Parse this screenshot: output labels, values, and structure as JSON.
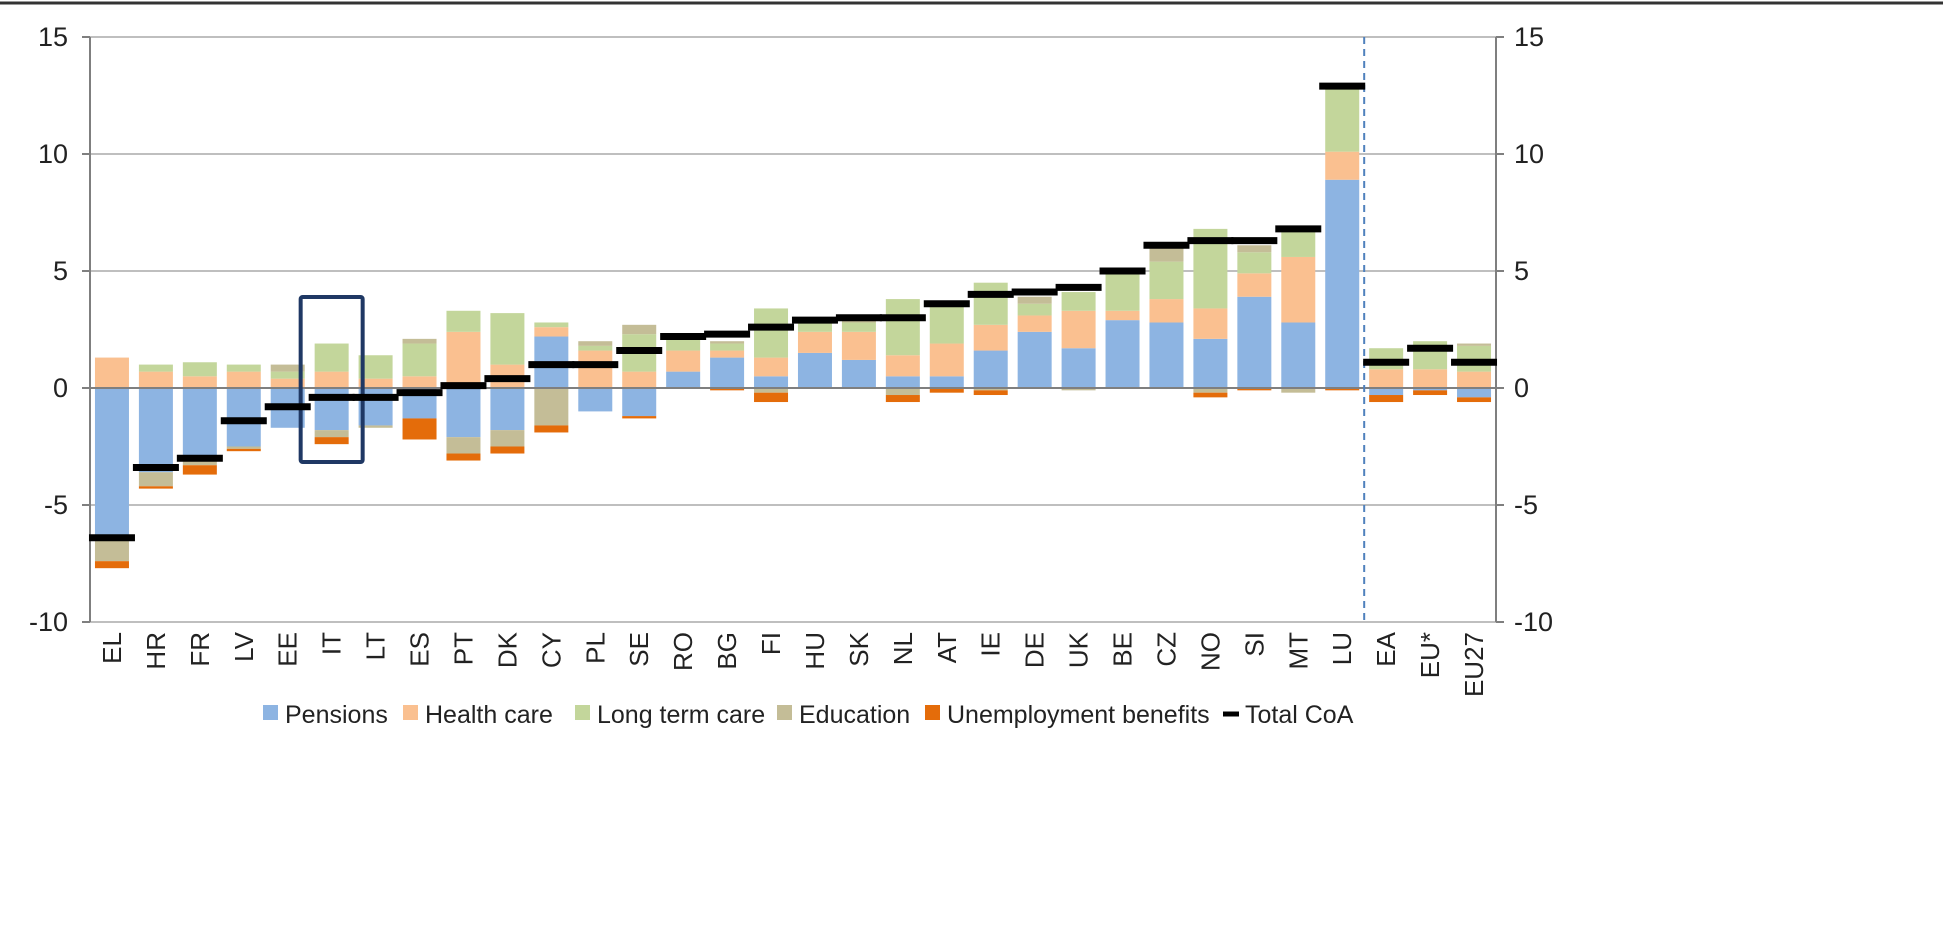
{
  "chart_data": {
    "type": "bar",
    "stacked": true,
    "categories": [
      "EL",
      "HR",
      "FR",
      "LV",
      "EE",
      "IT",
      "LT",
      "ES",
      "PT",
      "DK",
      "CY",
      "PL",
      "SE",
      "RO",
      "BG",
      "FI",
      "HU",
      "SK",
      "NL",
      "AT",
      "IE",
      "DE",
      "UK",
      "BE",
      "CZ",
      "NO",
      "SI",
      "MT",
      "LU",
      "EA",
      "EU*",
      "EU27"
    ],
    "ylim": [
      -10,
      15
    ],
    "yticks": [
      -10,
      -5,
      0,
      5,
      10,
      15
    ],
    "ytick_labels": [
      "-10",
      "-5",
      "0",
      "5",
      "10",
      "15"
    ],
    "grid": "horizontal",
    "dual_y_axis": true,
    "legend_position": "bottom",
    "highlighted_category": "IT",
    "separator_after": "LU",
    "series": [
      {
        "name": "Pensions",
        "color": "#8db4e2",
        "values": [
          -6.4,
          -3.6,
          -3.0,
          -2.5,
          -1.7,
          -1.8,
          -1.6,
          -1.3,
          -2.1,
          -1.8,
          2.2,
          -1.0,
          -1.2,
          0.7,
          1.3,
          0.5,
          1.5,
          1.2,
          0.5,
          0.5,
          1.6,
          2.4,
          1.7,
          2.9,
          2.8,
          2.1,
          3.9,
          2.8,
          8.9,
          -0.3,
          -0.1,
          -0.4
        ]
      },
      {
        "name": "Health care",
        "color": "#fac090",
        "values": [
          1.3,
          0.7,
          0.5,
          0.7,
          0.4,
          0.7,
          0.4,
          0.5,
          2.4,
          1.0,
          0.4,
          1.6,
          0.7,
          0.9,
          0.3,
          0.8,
          0.9,
          1.2,
          0.9,
          1.4,
          1.1,
          0.7,
          1.6,
          0.4,
          1.0,
          1.3,
          1.0,
          2.8,
          1.2,
          0.8,
          0.8,
          0.7
        ]
      },
      {
        "name": "Long term care",
        "color": "#c3d69b",
        "values": [
          0.0,
          0.3,
          0.6,
          0.3,
          0.3,
          1.2,
          1.0,
          1.4,
          0.9,
          2.2,
          0.2,
          0.2,
          1.6,
          0.5,
          0.3,
          2.1,
          0.4,
          0.4,
          2.4,
          1.6,
          1.8,
          0.5,
          0.8,
          1.6,
          1.6,
          3.4,
          0.9,
          1.3,
          2.8,
          0.9,
          1.2,
          1.1
        ]
      },
      {
        "name": "Education",
        "color": "#c4bd97",
        "values": [
          -1.0,
          -0.6,
          -0.3,
          -0.1,
          0.3,
          -0.3,
          -0.1,
          0.2,
          -0.7,
          -0.7,
          -1.6,
          0.2,
          0.4,
          0.0,
          0.1,
          -0.2,
          0.0,
          0.1,
          -0.3,
          0.0,
          -0.1,
          0.3,
          -0.1,
          0.0,
          0.7,
          -0.2,
          0.3,
          -0.2,
          0.0,
          0.0,
          0.0,
          0.1
        ]
      },
      {
        "name": "Unemployment benefits",
        "color": "#e46c0a",
        "values": [
          -0.3,
          -0.1,
          -0.4,
          -0.1,
          0.0,
          -0.3,
          0.0,
          -0.9,
          -0.3,
          -0.3,
          -0.3,
          0.0,
          -0.1,
          0.0,
          -0.1,
          -0.4,
          0.0,
          0.0,
          -0.3,
          -0.2,
          -0.2,
          0.0,
          0.0,
          0.0,
          0.0,
          -0.2,
          -0.1,
          0.0,
          -0.1,
          -0.3,
          -0.2,
          -0.2
        ]
      }
    ],
    "total": {
      "name": "Total CoA",
      "color": "#000000",
      "values": [
        -6.4,
        -3.4,
        -3.0,
        -1.4,
        -0.8,
        -0.4,
        -0.4,
        -0.2,
        0.1,
        0.4,
        1.0,
        1.0,
        1.6,
        2.2,
        2.3,
        2.6,
        2.9,
        3.0,
        3.0,
        3.6,
        4.0,
        4.1,
        4.3,
        5.0,
        6.1,
        6.3,
        6.3,
        6.8,
        12.9,
        1.1,
        1.7,
        1.1
      ]
    }
  }
}
